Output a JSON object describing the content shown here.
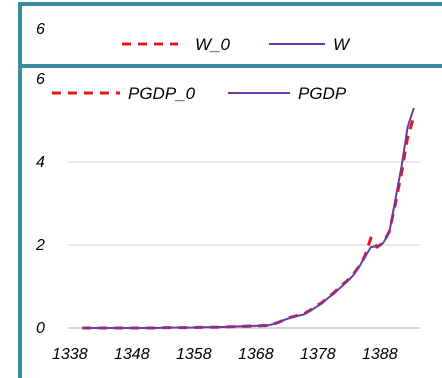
{
  "chart_data": [
    {
      "type": "line",
      "legend": [
        {
          "label": "W_0",
          "color": "#e8141e",
          "dash": true
        },
        {
          "label": "W",
          "color": "#6a3ba8",
          "dash": false
        }
      ],
      "y_tick_labels": [
        "6"
      ]
    },
    {
      "type": "line",
      "title": "",
      "xlabel": "",
      "ylabel": "",
      "xlim": [
        1336,
        1393
      ],
      "ylim": [
        0,
        6
      ],
      "x_tick_labels": [
        "1338",
        "1348",
        "1358",
        "1368",
        "1378",
        "1388"
      ],
      "y_tick_labels": [
        "0",
        "2",
        "4",
        "6"
      ],
      "grid": "horizontal",
      "legend_position": "top",
      "series": [
        {
          "name": "PGDP_0",
          "color": "#e8141e",
          "dashed": true,
          "x": [
            1338,
            1340,
            1342,
            1344,
            1346,
            1348,
            1350,
            1352,
            1354,
            1356,
            1358,
            1360,
            1362,
            1364,
            1366,
            1368,
            1369,
            1370,
            1371,
            1372,
            1373,
            1374,
            1375,
            1376,
            1377,
            1378,
            1379,
            1380,
            1381,
            1382,
            1383,
            1384,
            1385,
            1386,
            1387,
            1388,
            1389,
            1390,
            1391,
            1392
          ],
          "y": [
            0.0,
            0.0,
            0.0,
            0.0,
            0.0,
            0.0,
            0.0,
            0.01,
            0.01,
            0.01,
            0.02,
            0.02,
            0.03,
            0.04,
            0.05,
            0.06,
            0.09,
            0.14,
            0.2,
            0.26,
            0.3,
            0.33,
            0.42,
            0.52,
            0.61,
            0.74,
            0.85,
            1.0,
            1.12,
            1.27,
            1.47,
            1.72,
            2.17,
            1.95,
            2.05,
            2.32,
            3.0,
            3.75,
            4.6,
            5.1
          ]
        },
        {
          "name": "PGDP",
          "color": "#6a3ba8",
          "dashed": false,
          "x": [
            1338,
            1340,
            1342,
            1344,
            1346,
            1348,
            1350,
            1352,
            1354,
            1356,
            1358,
            1360,
            1362,
            1364,
            1366,
            1368,
            1369,
            1370,
            1371,
            1372,
            1373,
            1374,
            1375,
            1376,
            1377,
            1378,
            1379,
            1380,
            1381,
            1382,
            1383,
            1384,
            1385,
            1386,
            1387,
            1388,
            1389,
            1390,
            1391,
            1392
          ],
          "y": [
            0.0,
            0.0,
            0.0,
            0.0,
            0.0,
            0.0,
            0.0,
            0.01,
            0.01,
            0.01,
            0.02,
            0.02,
            0.03,
            0.04,
            0.05,
            0.06,
            0.09,
            0.14,
            0.2,
            0.25,
            0.29,
            0.32,
            0.4,
            0.5,
            0.59,
            0.72,
            0.83,
            0.97,
            1.1,
            1.25,
            1.45,
            1.7,
            1.95,
            1.97,
            2.05,
            2.3,
            3.1,
            3.9,
            4.85,
            5.3
          ]
        }
      ]
    }
  ]
}
